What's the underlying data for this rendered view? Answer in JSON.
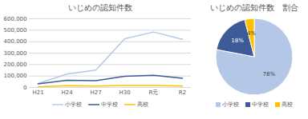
{
  "chart_data": [
    {
      "type": "line",
      "title": "いじめの認知件数",
      "categories": [
        "H21",
        "H24",
        "H27",
        "H30",
        "R元",
        "R2"
      ],
      "series": [
        {
          "name": "小学校",
          "color": "#b4c7e7",
          "values": [
            35000,
            117000,
            151000,
            425000,
            484000,
            420000
          ]
        },
        {
          "name": "中学校",
          "color": "#3d5a99",
          "values": [
            32000,
            63000,
            59000,
            97000,
            106000,
            80000
          ]
        },
        {
          "name": "高校",
          "color": "#ffc000",
          "values": [
            5600,
            16000,
            12600,
            17700,
            18300,
            13000
          ]
        }
      ],
      "ylim": [
        0,
        600000
      ],
      "yticks": [
        0,
        {
          "value": 100000,
          "label": "100,000"
        },
        {
          "value": 200000,
          "label": "200,000"
        },
        {
          "value": 300000,
          "label": "300,000"
        },
        {
          "value": 400000,
          "label": "400,000"
        },
        {
          "value": 500000,
          "label": "500,000"
        },
        {
          "value": 600000,
          "label": "600,000"
        }
      ],
      "grid": true,
      "legend": "bottom"
    },
    {
      "type": "pie",
      "title": "いじめの認知件数　割合",
      "categories": [
        "小学校",
        "中学校",
        "高校"
      ],
      "values": [
        78,
        18,
        4
      ],
      "value_labels": [
        "78%",
        "18%",
        "4%"
      ],
      "colors": [
        "#b4c7e7",
        "#3d5a99",
        "#ffc000"
      ],
      "data_labels": true,
      "legend": "bottom"
    }
  ]
}
